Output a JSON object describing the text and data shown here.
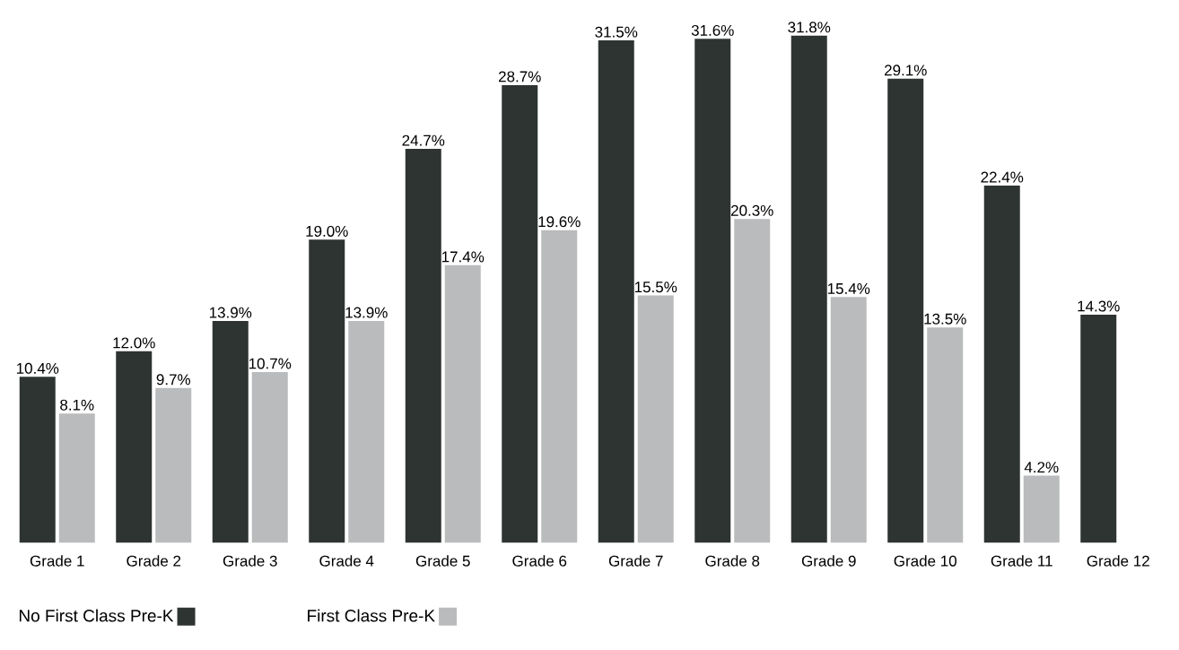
{
  "chart_data": {
    "type": "bar",
    "categories": [
      "Grade 1",
      "Grade 2",
      "Grade 3",
      "Grade 4",
      "Grade 5",
      "Grade 6",
      "Grade 7",
      "Grade 8",
      "Grade 9",
      "Grade 10",
      "Grade 11",
      "Grade 12"
    ],
    "series": [
      {
        "name": "No First Class Pre-K",
        "color": "#2e3432",
        "values": [
          10.4,
          12.0,
          13.9,
          19.0,
          24.7,
          28.7,
          31.5,
          31.6,
          31.8,
          29.1,
          22.4,
          14.3
        ],
        "value_labels": [
          "10.4%",
          "12.0%",
          "13.9%",
          "19.0%",
          "24.7%",
          "28.7%",
          "31.5%",
          "31.6%",
          "31.8%",
          "29.1%",
          "22.4%",
          "14.3%"
        ]
      },
      {
        "name": "First Class Pre-K",
        "color": "#b9bbbc",
        "values": [
          8.1,
          9.7,
          10.7,
          13.9,
          17.4,
          19.6,
          15.5,
          20.3,
          15.4,
          13.5,
          4.2,
          null
        ],
        "value_labels": [
          "8.1%",
          "9.7%",
          "10.7%",
          "13.9%",
          "17.4%",
          "19.6%",
          "15.5%",
          "20.3%",
          "15.4%",
          "13.5%",
          "4.2%",
          null
        ]
      }
    ],
    "tick_labels": "x",
    "legend": "bottom left"
  }
}
